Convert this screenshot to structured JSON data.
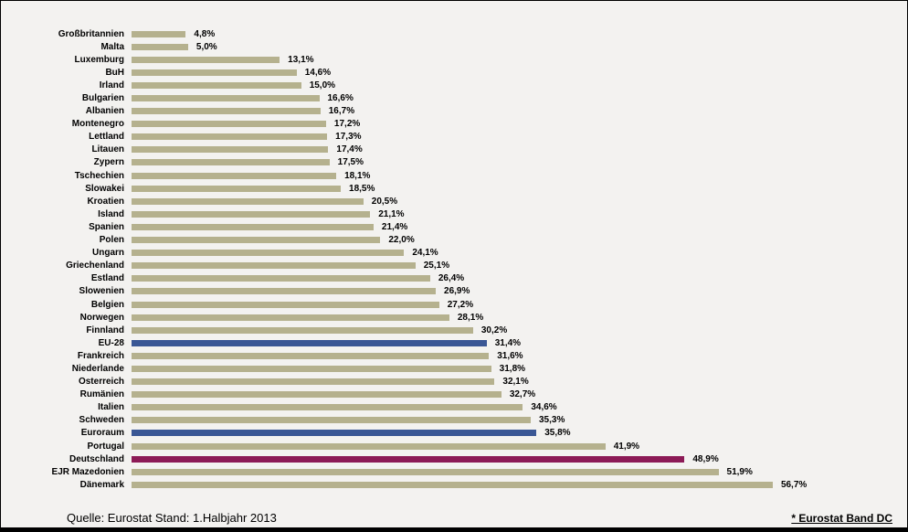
{
  "chart_data": {
    "type": "bar",
    "orientation": "horizontal",
    "title": "",
    "xlabel": "",
    "ylabel": "",
    "xlim": [
      0,
      60
    ],
    "grid": false,
    "legend": "none",
    "categories": [
      "Großbritannien",
      "Malta",
      "Luxemburg",
      "BuH",
      "Irland",
      "Bulgarien",
      "Albanien",
      "Montenegro",
      "Lettland",
      "Litauen",
      "Zypern",
      "Tschechien",
      "Slowakei",
      "Kroatien",
      "Island",
      "Spanien",
      "Polen",
      "Ungarn",
      "Griechenland",
      "Estland",
      "Slowenien",
      "Belgien",
      "Norwegen",
      "Finnland",
      "EU-28",
      "Frankreich",
      "Niederlande",
      "Österreich",
      "Rumänien",
      "Italien",
      "Schweden",
      "Euroraum",
      "Portugal",
      "Deutschland",
      "EJR Mazedonien",
      "Dänemark"
    ],
    "values": [
      4.8,
      5.0,
      13.1,
      14.6,
      15.0,
      16.6,
      16.7,
      17.2,
      17.3,
      17.4,
      17.5,
      18.1,
      18.5,
      20.5,
      21.1,
      21.4,
      22.0,
      24.1,
      25.1,
      26.4,
      26.9,
      27.2,
      28.1,
      30.2,
      31.4,
      31.6,
      31.8,
      32.1,
      32.7,
      34.6,
      35.3,
      35.8,
      41.9,
      48.9,
      51.9,
      56.7
    ],
    "value_labels": [
      "4,8%",
      "5,0%",
      "13,1%",
      "14,6%",
      "15,0%",
      "16,6%",
      "16,7%",
      "17,2%",
      "17,3%",
      "17,4%",
      "17,5%",
      "18,1%",
      "18,5%",
      "20,5%",
      "21,1%",
      "21,4%",
      "22,0%",
      "24,1%",
      "25,1%",
      "26,4%",
      "26,9%",
      "27,2%",
      "28,1%",
      "30,2%",
      "31,4%",
      "31,6%",
      "31,8%",
      "32,1%",
      "32,7%",
      "34,6%",
      "35,3%",
      "35,8%",
      "41,9%",
      "48,9%",
      "51,9%",
      "56,7%"
    ],
    "highlights": {
      "EU-28": "#3a5795",
      "Euroraum": "#3a5795",
      "Deutschland": "#8c1a56"
    }
  },
  "colors": {
    "bar_default": "#b5b18e",
    "bar_highlight_blue": "#3a5795",
    "bar_highlight_maroon": "#8c1a56",
    "background": "#f3f2f0"
  },
  "footer": {
    "source": "Quelle: Eurostat Stand: 1.Halbjahr 2013",
    "note": "* Eurostat Band DC"
  }
}
